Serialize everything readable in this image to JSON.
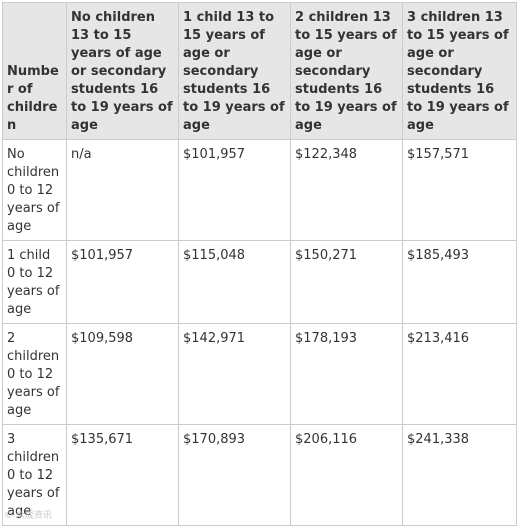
{
  "table": {
    "row_header_label": "Number of children",
    "columns": [
      "No children 13 to 15 years of age or secondary students 16 to 19 years of age",
      "1 child 13 to 15 years of age or secondary students 16 to 19 years of age",
      "2 children 13 to 15 years of age or secondary students 16 to 19 years of age",
      "3 children 13 to 15 years of age or secondary students 16 to 19 years of age"
    ],
    "rows": [
      {
        "label": "No children 0 to 12 years of age",
        "values": [
          "n/a",
          "$101,957",
          "$122,348",
          "$157,571"
        ]
      },
      {
        "label": "1 child 0 to 12 years of age",
        "values": [
          "$101,957",
          "$115,048",
          "$150,271",
          "$185,493"
        ]
      },
      {
        "label": "2 children 0 to 12 years of age",
        "values": [
          "$109,598",
          "$142,971",
          "$178,193",
          "$213,416"
        ]
      },
      {
        "label": "3 children 0 to 12 years of age",
        "values": [
          "$135,671",
          "$170,893",
          "$206,116",
          "$241,338"
        ]
      }
    ]
  },
  "watermark": {
    "text": "© 众成资讯"
  }
}
